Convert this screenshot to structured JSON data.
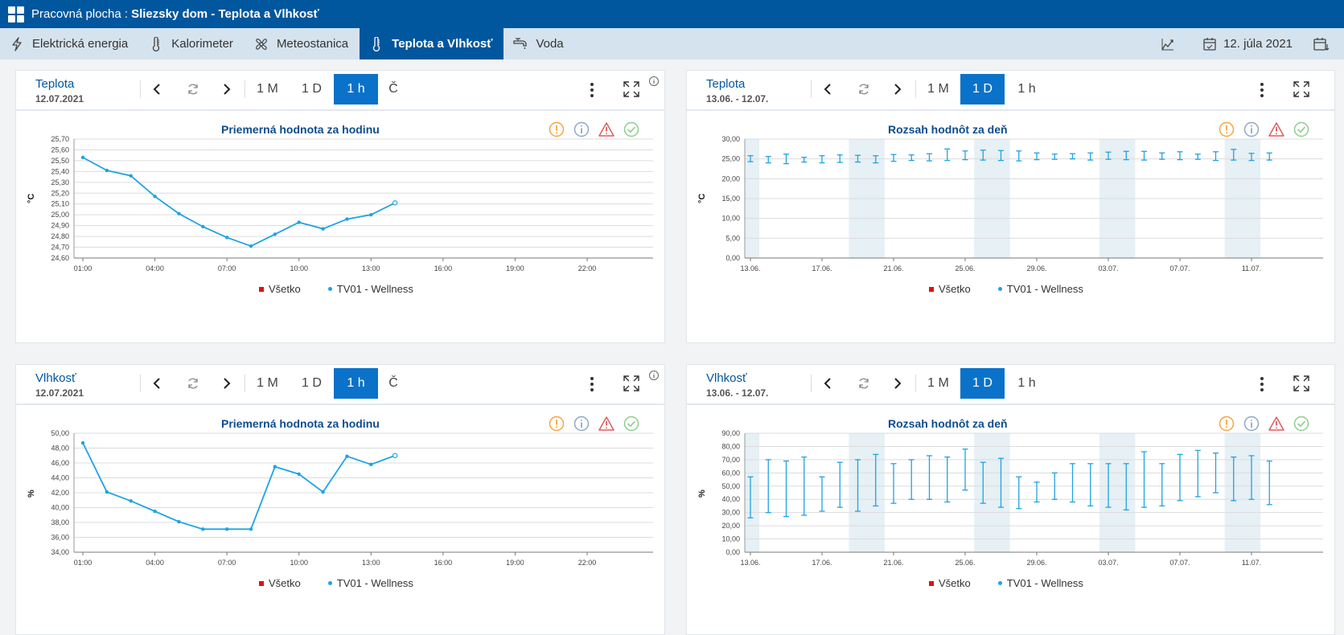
{
  "titlebar": {
    "prefix": "Pracovná plocha :",
    "title": "Sliezsky dom - Teplota a Vlhkosť"
  },
  "tabs": [
    {
      "label": "Elektrická energia",
      "icon": "lightning-icon",
      "active": false
    },
    {
      "label": "Kalorimeter",
      "icon": "thermometer-icon",
      "active": false
    },
    {
      "label": "Meteostanica",
      "icon": "fan-icon",
      "active": false
    },
    {
      "label": "Teplota a Vlhkosť",
      "icon": "thermometer-icon",
      "active": true
    },
    {
      "label": "Voda",
      "icon": "faucet-icon",
      "active": false
    }
  ],
  "toolbar": {
    "date": "12. júla 2021"
  },
  "legend": {
    "all": "Všetko",
    "sensor": "TV01 - Wellness"
  },
  "status_colors": {
    "warning": "#f4a640",
    "info": "#8ea8c8",
    "alert": "#e05b5b",
    "ok": "#8ccf8c"
  },
  "panels": {
    "temp_hour": {
      "title": "Teplota",
      "date": "12.07.2021",
      "periods": [
        "1 M",
        "1 D",
        "1 h",
        "Č"
      ],
      "active_period": "1 h",
      "chart_title": "Priemerná hodnota za hodinu"
    },
    "temp_day": {
      "title": "Teplota",
      "date": "13.06. - 12.07.",
      "periods": [
        "1 M",
        "1 D",
        "1 h"
      ],
      "active_period": "1 D",
      "chart_title": "Rozsah hodnôt za deň"
    },
    "hum_hour": {
      "title": "Vlhkosť",
      "date": "12.07.2021",
      "periods": [
        "1 M",
        "1 D",
        "1 h",
        "Č"
      ],
      "active_period": "1 h",
      "chart_title": "Priemerná hodnota za hodinu"
    },
    "hum_day": {
      "title": "Vlhkosť",
      "date": "13.06. - 12.07.",
      "periods": [
        "1 M",
        "1 D",
        "1 h"
      ],
      "active_period": "1 D",
      "chart_title": "Rozsah hodnôt za deň"
    }
  },
  "chart_data": [
    {
      "type": "line",
      "title": "Priemerná hodnota za hodinu",
      "ylabel": "°C",
      "ylim": [
        24.6,
        25.7
      ],
      "yticks": [
        "24,60",
        "24,70",
        "24,80",
        "24,90",
        "25,00",
        "25,10",
        "25,20",
        "25,30",
        "25,40",
        "25,50",
        "25,60",
        "25,70"
      ],
      "xticks": [
        "01:00",
        "04:00",
        "07:00",
        "10:00",
        "13:00",
        "16:00",
        "19:00",
        "22:00"
      ],
      "x": [
        1,
        2,
        3,
        4,
        5,
        6,
        7,
        8,
        9,
        10,
        11,
        12,
        13,
        14
      ],
      "series": [
        {
          "name": "TV01 - Wellness",
          "color": "#1ea3e4",
          "values": [
            25.53,
            25.41,
            25.36,
            25.17,
            25.01,
            24.89,
            24.79,
            24.71,
            24.82,
            24.93,
            24.87,
            24.96,
            25.0,
            25.11
          ]
        }
      ]
    },
    {
      "type": "errorbar",
      "title": "Rozsah hodnôt za deň",
      "ylabel": "°C",
      "ylim": [
        0,
        30
      ],
      "yticks": [
        "0,00",
        "5,00",
        "10,00",
        "15,00",
        "20,00",
        "25,00",
        "30,00"
      ],
      "xticks": [
        "13.06.",
        "17.06.",
        "21.06.",
        "25.06.",
        "29.06.",
        "03.07.",
        "07.07.",
        "11.07."
      ],
      "weekend_bands": [
        [
          12.5,
          13.5
        ],
        [
          18.5,
          20.5
        ],
        [
          25.5,
          27.5
        ],
        [
          32.5,
          34.5
        ],
        [
          39.5,
          41.5
        ]
      ],
      "series": [
        {
          "name": "TV01 - Wellness",
          "color": "#1ea3e4",
          "low": [
            24.3,
            24.0,
            23.8,
            24.2,
            24.0,
            24.1,
            24.2,
            24.0,
            24.4,
            24.6,
            24.5,
            24.6,
            24.8,
            24.7,
            24.6,
            24.5,
            24.8,
            24.9,
            25.0,
            24.7,
            24.9,
            24.8,
            24.7,
            24.9,
            24.8,
            24.9,
            24.6,
            24.7,
            24.6,
            24.7
          ],
          "high": [
            25.8,
            25.6,
            26.2,
            25.4,
            25.8,
            26.0,
            25.9,
            25.8,
            26.1,
            26.0,
            26.3,
            27.5,
            27.0,
            27.2,
            27.1,
            27.0,
            26.5,
            26.2,
            26.3,
            26.5,
            26.7,
            26.9,
            26.9,
            26.5,
            26.8,
            26.2,
            26.8,
            27.4,
            26.4,
            26.5
          ]
        }
      ]
    },
    {
      "type": "line",
      "title": "Priemerná hodnota za hodinu",
      "ylabel": "%",
      "ylim": [
        34,
        50
      ],
      "yticks": [
        "34,00",
        "36,00",
        "38,00",
        "40,00",
        "42,00",
        "44,00",
        "46,00",
        "48,00",
        "50,00"
      ],
      "xticks": [
        "01:00",
        "04:00",
        "07:00",
        "10:00",
        "13:00",
        "16:00",
        "19:00",
        "22:00"
      ],
      "x": [
        1,
        2,
        3,
        4,
        5,
        6,
        7,
        8,
        9,
        10,
        11,
        12,
        13,
        14
      ],
      "series": [
        {
          "name": "TV01 - Wellness",
          "color": "#1ea3e4",
          "values": [
            48.7,
            42.1,
            40.9,
            39.5,
            38.1,
            37.1,
            37.1,
            37.1,
            45.5,
            44.5,
            42.1,
            46.9,
            45.8,
            47.0
          ]
        }
      ]
    },
    {
      "type": "errorbar",
      "title": "Rozsah hodnôt za deň",
      "ylabel": "%",
      "ylim": [
        0,
        90
      ],
      "yticks": [
        "0,00",
        "10,00",
        "20,00",
        "30,00",
        "40,00",
        "50,00",
        "60,00",
        "70,00",
        "80,00",
        "90,00"
      ],
      "xticks": [
        "13.06.",
        "17.06.",
        "21.06.",
        "25.06.",
        "29.06.",
        "03.07.",
        "07.07.",
        "11.07."
      ],
      "weekend_bands": [
        [
          12.5,
          13.5
        ],
        [
          18.5,
          20.5
        ],
        [
          25.5,
          27.5
        ],
        [
          32.5,
          34.5
        ],
        [
          39.5,
          41.5
        ]
      ],
      "series": [
        {
          "name": "TV01 - Wellness",
          "color": "#1ea3e4",
          "low": [
            26,
            30,
            27,
            28,
            31,
            34,
            31,
            35,
            37,
            40,
            40,
            38,
            47,
            37,
            34,
            33,
            38,
            40,
            38,
            35,
            34,
            32,
            34,
            35,
            39,
            42,
            45,
            39,
            40,
            36
          ],
          "high": [
            57,
            70,
            69,
            72,
            57,
            68,
            70,
            74,
            67,
            70,
            73,
            72,
            78,
            68,
            71,
            57,
            53,
            60,
            67,
            67,
            67,
            67,
            76,
            67,
            74,
            77,
            75,
            72,
            73,
            69
          ]
        }
      ]
    }
  ]
}
